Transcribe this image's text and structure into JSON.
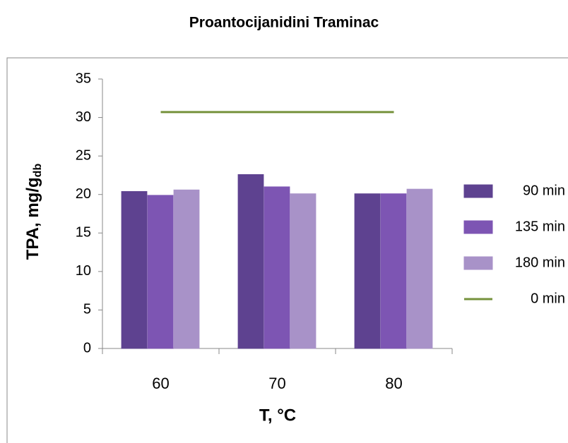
{
  "chart_data": {
    "type": "bar",
    "title": "Proantocijanidini Traminac",
    "x_label": "T, °C",
    "y_label": {
      "text": "TPA, mg/g",
      "subscript": "db"
    },
    "categories": [
      "60",
      "70",
      "80"
    ],
    "series": [
      {
        "name": "90 min",
        "color": "#5e4290",
        "values": [
          20.4,
          22.6,
          20.1
        ]
      },
      {
        "name": "135 min",
        "color": "#7d55b3",
        "values": [
          19.9,
          21.0,
          20.1
        ]
      },
      {
        "name": "180 min",
        "color": "#a892c8",
        "values": [
          20.6,
          20.1,
          20.7
        ]
      },
      {
        "name": "0 min",
        "type": "line",
        "color": "#76923c",
        "values": [
          30.7,
          30.7,
          30.7
        ]
      }
    ],
    "ylim": [
      0,
      35
    ],
    "yticks": [
      0,
      5,
      10,
      15,
      20,
      25,
      30,
      35
    ],
    "legend": "right"
  }
}
